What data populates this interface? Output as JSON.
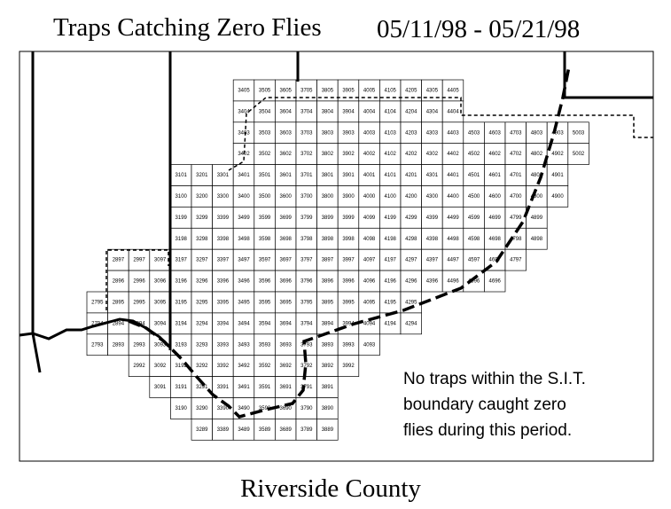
{
  "header": {
    "title": "Traps Catching Zero Flies",
    "date_range": "05/11/98 - 05/21/98"
  },
  "grid": {
    "rows": [
      [
        "3405",
        "3505",
        "3605",
        "3705",
        "3805",
        "3905",
        "4005",
        "4105",
        "4205",
        "4305",
        "4405"
      ],
      [
        "3404",
        "3504",
        "3604",
        "3704",
        "3804",
        "3904",
        "4004",
        "4104",
        "4204",
        "4304",
        "4404"
      ],
      [
        "3403",
        "3503",
        "3603",
        "3703",
        "3803",
        "3903",
        "4003",
        "4103",
        "4203",
        "4303",
        "4403",
        "4503",
        "4603",
        "4703",
        "4803",
        "4903",
        "5003"
      ],
      [
        "3402",
        "3502",
        "3602",
        "3702",
        "3802",
        "3902",
        "4002",
        "4102",
        "4202",
        "4302",
        "4402",
        "4502",
        "4602",
        "4702",
        "4802",
        "4902",
        "5002"
      ],
      [
        "3101",
        "3201",
        "3301",
        "3401",
        "3501",
        "3601",
        "3701",
        "3801",
        "3901",
        "4001",
        "4101",
        "4201",
        "4301",
        "4401",
        "4501",
        "4601",
        "4701",
        "4801",
        "4901"
      ],
      [
        "3100",
        "3200",
        "3300",
        "3400",
        "3500",
        "3600",
        "3700",
        "3800",
        "3900",
        "4000",
        "4100",
        "4200",
        "4300",
        "4400",
        "4500",
        "4600",
        "4700",
        "4800",
        "4900"
      ],
      [
        "3199",
        "3299",
        "3399",
        "3499",
        "3599",
        "3699",
        "3799",
        "3899",
        "3999",
        "4099",
        "4199",
        "4299",
        "4399",
        "4499",
        "4599",
        "4699",
        "4799",
        "4899"
      ],
      [
        "3198",
        "3298",
        "3398",
        "3498",
        "3598",
        "3698",
        "3798",
        "3898",
        "3998",
        "4098",
        "4198",
        "4298",
        "4398",
        "4498",
        "4598",
        "4698",
        "4798",
        "4898"
      ],
      [
        "2897",
        "2997",
        "3097",
        "3197",
        "3297",
        "3397",
        "3497",
        "3597",
        "3697",
        "3797",
        "3897",
        "3997",
        "4097",
        "4197",
        "4297",
        "4397",
        "4497",
        "4597",
        "4697",
        "4797"
      ],
      [
        "2896",
        "2996",
        "3096",
        "3196",
        "3296",
        "3396",
        "3496",
        "3596",
        "3696",
        "3796",
        "3896",
        "3996",
        "4096",
        "4196",
        "4296",
        "4396",
        "4496",
        "4596",
        "4696"
      ],
      [
        "2795",
        "2895",
        "2995",
        "3095",
        "3195",
        "3295",
        "3395",
        "3495",
        "3595",
        "3695",
        "3795",
        "3895",
        "3995",
        "4095",
        "4195",
        "4295"
      ],
      [
        "2794",
        "2894",
        "2994",
        "3094",
        "3194",
        "3294",
        "3394",
        "3494",
        "3594",
        "3694",
        "3794",
        "3894",
        "3994",
        "4094",
        "4194",
        "4294"
      ],
      [
        "2793",
        "2893",
        "2993",
        "3093",
        "3193",
        "3293",
        "3393",
        "3493",
        "3593",
        "3693",
        "3793",
        "3893",
        "3993",
        "4093"
      ],
      [
        "2992",
        "3092",
        "3192",
        "3292",
        "3392",
        "3492",
        "3592",
        "3692",
        "3792",
        "3892",
        "3992"
      ],
      [
        "3091",
        "3191",
        "3291",
        "3391",
        "3491",
        "3591",
        "3691",
        "3791",
        "3891"
      ],
      [
        "3190",
        "3290",
        "3390",
        "3490",
        "3590",
        "3690",
        "3790",
        "3890"
      ],
      [
        "3289",
        "3389",
        "3489",
        "3589",
        "3689",
        "3789",
        "3889"
      ]
    ]
  },
  "note": {
    "lines": [
      "No traps within the S.I.T.",
      "boundary caught zero",
      "flies during this period."
    ]
  },
  "footer": {
    "label": "Riverside County"
  }
}
